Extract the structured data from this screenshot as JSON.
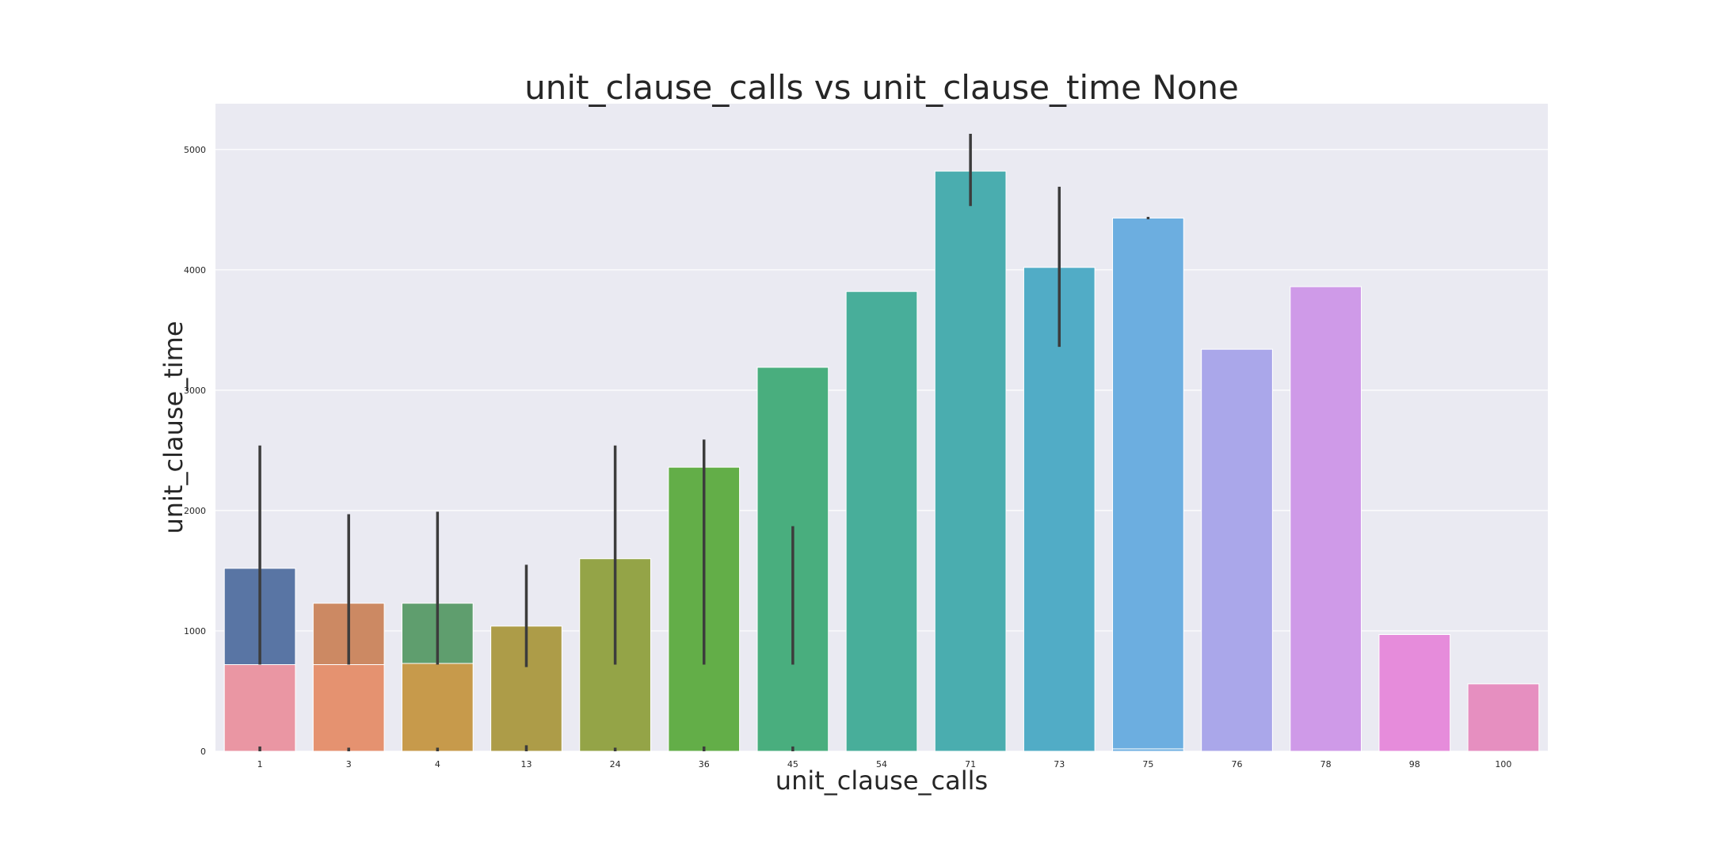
{
  "chart_data": {
    "type": "bar",
    "title": "unit_clause_calls vs unit_clause_time None",
    "xlabel": "unit_clause_calls",
    "ylabel": "unit_clause_time",
    "categories": [
      "1",
      "3",
      "4",
      "13",
      "24",
      "36",
      "45",
      "54",
      "71",
      "73",
      "75",
      "76",
      "78",
      "98",
      "100"
    ],
    "ylim": [
      0,
      5380
    ],
    "yticks": [
      0,
      1000,
      2000,
      3000,
      4000,
      5000
    ],
    "grid": true,
    "legend": "none",
    "series": [
      {
        "values": [
          1520,
          1230,
          1230,
          1040,
          1600,
          2360,
          3190,
          3820,
          4820,
          4020,
          4430,
          3340,
          3860,
          970,
          560
        ],
        "colors": [
          "#5975a4",
          "#cc8963",
          "#5f9e6e",
          "#ad9c48",
          "#94a447",
          "#63ae48",
          "#49ae7e",
          "#48ae9a",
          "#4aadaf",
          "#51acc6",
          "#6caee0",
          "#aaa7ea",
          "#cf9ae8",
          "#e68cdb",
          "#e68fc0"
        ],
        "error_low": [
          720,
          720,
          720,
          700,
          720,
          720,
          720,
          null,
          4530,
          3360,
          4420,
          null,
          null,
          null,
          null
        ],
        "error_high": [
          2540,
          1970,
          1990,
          1550,
          2540,
          2590,
          1870,
          null,
          5130,
          4690,
          4440,
          null,
          null,
          null,
          null
        ]
      },
      {
        "values": [
          720,
          720,
          730,
          0,
          0,
          0,
          0,
          0,
          0,
          0,
          20,
          0,
          0,
          0,
          0
        ],
        "colors": [
          "#ea96a3",
          "#e59270",
          "#c79a4b",
          "#ad9c48",
          "#94a447",
          "#63ae48",
          "#49ae7e",
          "#48ae9a",
          "#4aadaf",
          "#51acc6",
          "#6caee0",
          "#aaa7ea",
          "#cf9ae8",
          "#e68cdb",
          "#e68fc0"
        ],
        "error_low": [
          0,
          0,
          0,
          0,
          0,
          0,
          0,
          null,
          null,
          null,
          null,
          null,
          null,
          null,
          null
        ],
        "error_high": [
          40,
          30,
          30,
          50,
          30,
          40,
          40,
          null,
          null,
          null,
          null,
          null,
          null,
          null,
          null
        ]
      }
    ]
  }
}
